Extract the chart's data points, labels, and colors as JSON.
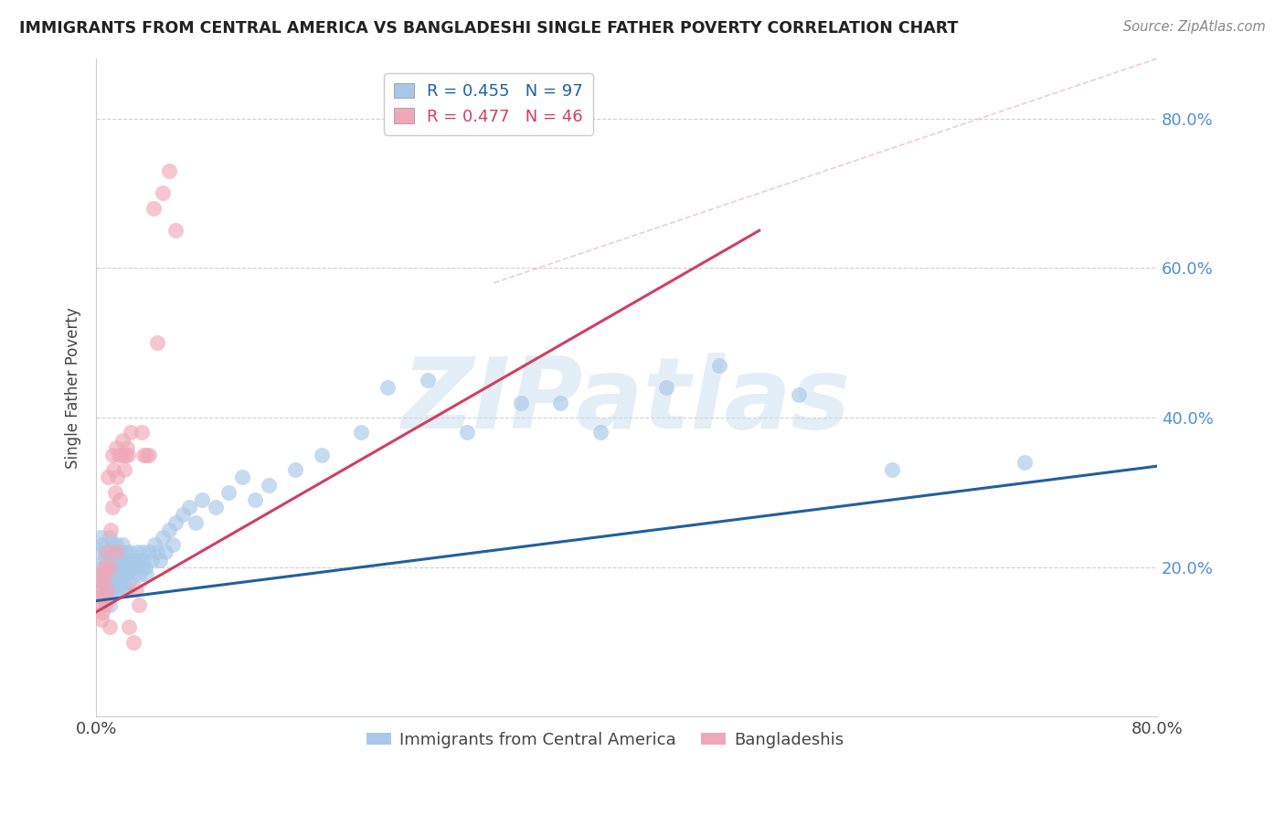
{
  "title": "IMMIGRANTS FROM CENTRAL AMERICA VS BANGLADESHI SINGLE FATHER POVERTY CORRELATION CHART",
  "source": "Source: ZipAtlas.com",
  "ylabel": "Single Father Poverty",
  "xlim": [
    0.0,
    0.8
  ],
  "ylim": [
    0.0,
    0.88
  ],
  "blue_R": 0.455,
  "blue_N": 97,
  "pink_R": 0.477,
  "pink_N": 46,
  "blue_color": "#a8c8e8",
  "pink_color": "#f0a8b8",
  "blue_line_color": "#2060a0",
  "pink_line_color": "#d04060",
  "legend_label_blue": "Immigrants from Central America",
  "legend_label_pink": "Bangladeshis",
  "watermark": "ZIPatlas",
  "blue_scatter_x": [
    0.002,
    0.003,
    0.004,
    0.004,
    0.005,
    0.005,
    0.005,
    0.006,
    0.006,
    0.007,
    0.007,
    0.008,
    0.008,
    0.009,
    0.009,
    0.01,
    0.01,
    0.01,
    0.01,
    0.01,
    0.011,
    0.011,
    0.012,
    0.012,
    0.012,
    0.013,
    0.013,
    0.014,
    0.014,
    0.015,
    0.015,
    0.015,
    0.016,
    0.016,
    0.017,
    0.017,
    0.018,
    0.018,
    0.019,
    0.019,
    0.02,
    0.02,
    0.021,
    0.021,
    0.022,
    0.022,
    0.023,
    0.023,
    0.024,
    0.025,
    0.025,
    0.026,
    0.027,
    0.028,
    0.029,
    0.03,
    0.031,
    0.032,
    0.033,
    0.034,
    0.035,
    0.036,
    0.037,
    0.038,
    0.04,
    0.042,
    0.044,
    0.046,
    0.048,
    0.05,
    0.052,
    0.055,
    0.058,
    0.06,
    0.065,
    0.07,
    0.075,
    0.08,
    0.09,
    0.1,
    0.11,
    0.12,
    0.13,
    0.15,
    0.17,
    0.2,
    0.22,
    0.25,
    0.28,
    0.32,
    0.35,
    0.38,
    0.43,
    0.47,
    0.53,
    0.6,
    0.7
  ],
  "blue_scatter_y": [
    0.22,
    0.24,
    0.2,
    0.17,
    0.23,
    0.19,
    0.16,
    0.21,
    0.18,
    0.22,
    0.19,
    0.21,
    0.17,
    0.22,
    0.18,
    0.24,
    0.21,
    0.19,
    0.17,
    0.15,
    0.22,
    0.18,
    0.23,
    0.2,
    0.17,
    0.22,
    0.19,
    0.21,
    0.18,
    0.23,
    0.2,
    0.17,
    0.22,
    0.19,
    0.21,
    0.18,
    0.22,
    0.19,
    0.2,
    0.17,
    0.23,
    0.19,
    0.21,
    0.18,
    0.22,
    0.19,
    0.21,
    0.17,
    0.2,
    0.22,
    0.18,
    0.21,
    0.2,
    0.19,
    0.21,
    0.2,
    0.22,
    0.19,
    0.21,
    0.2,
    0.22,
    0.21,
    0.2,
    0.19,
    0.22,
    0.21,
    0.23,
    0.22,
    0.21,
    0.24,
    0.22,
    0.25,
    0.23,
    0.26,
    0.27,
    0.28,
    0.26,
    0.29,
    0.28,
    0.3,
    0.32,
    0.29,
    0.31,
    0.33,
    0.35,
    0.38,
    0.44,
    0.45,
    0.38,
    0.42,
    0.42,
    0.38,
    0.44,
    0.47,
    0.43,
    0.33,
    0.34
  ],
  "pink_scatter_x": [
    0.002,
    0.003,
    0.003,
    0.004,
    0.004,
    0.005,
    0.005,
    0.006,
    0.006,
    0.007,
    0.007,
    0.008,
    0.008,
    0.009,
    0.01,
    0.01,
    0.011,
    0.012,
    0.012,
    0.013,
    0.014,
    0.015,
    0.015,
    0.016,
    0.017,
    0.018,
    0.019,
    0.02,
    0.021,
    0.022,
    0.023,
    0.024,
    0.025,
    0.026,
    0.028,
    0.03,
    0.032,
    0.034,
    0.036,
    0.038,
    0.04,
    0.043,
    0.046,
    0.05,
    0.055,
    0.06
  ],
  "pink_scatter_y": [
    0.17,
    0.15,
    0.19,
    0.16,
    0.13,
    0.18,
    0.14,
    0.2,
    0.16,
    0.19,
    0.15,
    0.22,
    0.17,
    0.32,
    0.2,
    0.12,
    0.25,
    0.35,
    0.28,
    0.33,
    0.3,
    0.36,
    0.22,
    0.32,
    0.35,
    0.29,
    0.35,
    0.37,
    0.33,
    0.35,
    0.36,
    0.35,
    0.12,
    0.38,
    0.1,
    0.17,
    0.15,
    0.38,
    0.35,
    0.35,
    0.35,
    0.68,
    0.5,
    0.7,
    0.73,
    0.65
  ],
  "bg_color": "#ffffff",
  "grid_color": "#d0d0d0",
  "right_axis_color": "#5090d0"
}
